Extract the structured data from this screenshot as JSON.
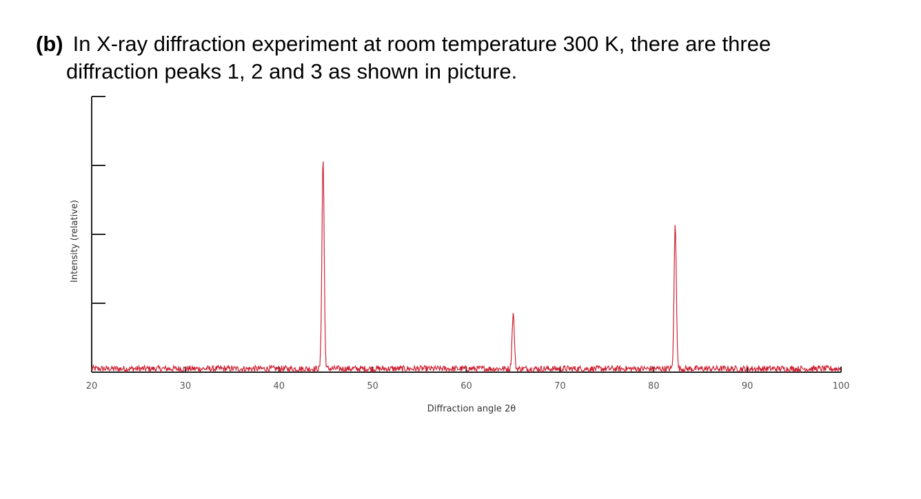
{
  "question": {
    "label": "(b)",
    "line1": "In X-ray diffraction experiment at room temperature 300 K, there are three",
    "line2": "diffraction peaks 1, 2 and 3 as shown in picture."
  },
  "chart_data": {
    "type": "line",
    "xlabel": "Diffraction angle 2θ",
    "ylabel": "Intensity (relative)",
    "xlim": [
      20,
      100
    ],
    "ylim": [
      0,
      4
    ],
    "x_ticks": [
      20,
      30,
      40,
      50,
      60,
      70,
      80,
      90,
      100
    ],
    "y_ticks_unlabeled": 5,
    "grid": false,
    "line_color": "#cc2233",
    "baseline": 0.05,
    "peaks": [
      {
        "x": 44.7,
        "y": 3.05
      },
      {
        "x": 65.0,
        "y": 0.8
      },
      {
        "x": 82.3,
        "y": 2.1
      }
    ]
  }
}
